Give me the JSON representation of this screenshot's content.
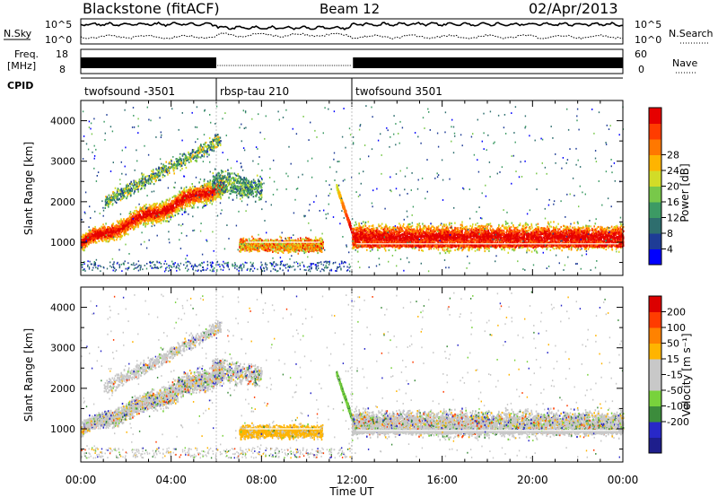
{
  "header": {
    "title": "Blackstone (fitACF)",
    "beam": "Beam 12",
    "date": "02/Apr/2013"
  },
  "aux_panels": {
    "nsky_label": "N.Sky",
    "nsky_ticks": [
      "10^5",
      "10^0"
    ],
    "nsearch_label": "N.Search",
    "nsearch_ticks": [
      "10^5",
      "10^0"
    ],
    "freq_label_1": "Freq.",
    "freq_label_2": "[MHz]",
    "freq_ticks": [
      "18",
      "8"
    ],
    "nave_label": "Nave",
    "nave_ticks": [
      "60",
      "0"
    ],
    "cpid_label": "CPID",
    "cpid_segments": [
      {
        "label": "twofsound -3501",
        "start_h": 0,
        "end_h": 6
      },
      {
        "label": "rbsp-tau 210",
        "start_h": 6,
        "end_h": 12
      },
      {
        "label": "twofsound 3501",
        "start_h": 12,
        "end_h": 24
      }
    ]
  },
  "chart_data": [
    {
      "type": "heatmap",
      "name": "power",
      "xlabel": "",
      "ylabel": "Slant Range [km]",
      "xlim_hours": [
        0,
        24
      ],
      "ylim": [
        180,
        4500
      ],
      "yticks": [
        "4000",
        "3000",
        "2000",
        "1000"
      ],
      "colorbar_label": "Power [dB]",
      "colorbar_ticks": [
        "28",
        "24",
        "20",
        "16",
        "12",
        "8",
        "4"
      ],
      "colorbar_colors": [
        "#0000ff",
        "#1e3c96",
        "#2e6e6e",
        "#3c9a64",
        "#78c84a",
        "#d2dc28",
        "#ffb400",
        "#ff7800",
        "#ff3c00",
        "#e60000"
      ]
    },
    {
      "type": "heatmap",
      "name": "velocity",
      "xlabel": "Time UT",
      "ylabel": "Slant Range [km]",
      "xlim_hours": [
        0,
        24
      ],
      "ylim": [
        180,
        4500
      ],
      "xticks": [
        "00:00",
        "04:00",
        "08:00",
        "12:00",
        "16:00",
        "20:00",
        "00:00"
      ],
      "yticks": [
        "4000",
        "3000",
        "2000",
        "1000"
      ],
      "colorbar_label": "Velocity [m s⁻¹]",
      "colorbar_ticks": [
        "200",
        "100",
        "50",
        "15",
        "-15",
        "-50",
        "-100",
        "-200"
      ],
      "colorbar_colors": [
        "#1e1e8c",
        "#2828c8",
        "#3c8c3c",
        "#78d23c",
        "#c8c8c8",
        "#c8c8c8",
        "#ffb400",
        "#ff8200",
        "#ff3c00",
        "#dc0000"
      ]
    }
  ]
}
